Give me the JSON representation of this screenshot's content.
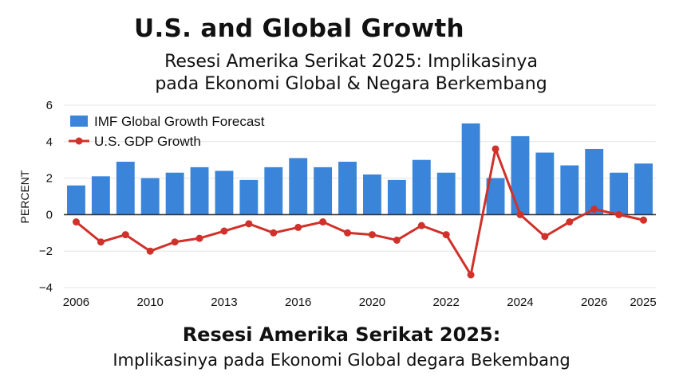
{
  "header": {
    "title": "U.S. and Global Growth",
    "subtitle_line1": "Resesi Amerika Serikat 2025: Implikasinya",
    "subtitle_line2": "pada Ekonomi Global & Negara Berkembang"
  },
  "footer": {
    "title": "Resesi Amerika Serikat 2025:",
    "subtitle": "Implikasinya pada Ekonomi Global degara Bekembang"
  },
  "chart_data": {
    "type": "bar",
    "ylabel": "PERCENT",
    "ylim": [
      -4,
      6
    ],
    "yticks": [
      "6",
      "4",
      "2",
      "0",
      "−2",
      "−4"
    ],
    "ytick_values": [
      6,
      4,
      2,
      0,
      -2,
      -4
    ],
    "xtick_labels": [
      "2006",
      "2010",
      "2013",
      "2016",
      "2020",
      "2022",
      "2024",
      "2026",
      "2025"
    ],
    "xtick_positions": [
      0,
      3,
      6,
      9,
      12,
      15,
      18,
      21,
      23.5
    ],
    "grid": true,
    "legend_position": "top-left",
    "colors": {
      "bar": "#3a85d9",
      "line": "#d0312a",
      "zero_line": "#333333",
      "grid": "#e3e3e3"
    },
    "series": [
      {
        "name": "IMF Global Growth Forecast",
        "type": "bar",
        "values": [
          1.6,
          2.1,
          2.9,
          2.0,
          2.3,
          2.6,
          2.4,
          1.9,
          2.6,
          3.1,
          2.6,
          2.9,
          2.2,
          1.9,
          3.0,
          2.3,
          5.0,
          2.0,
          4.3,
          3.4,
          2.7,
          3.6,
          2.3,
          2.8
        ]
      },
      {
        "name": "U.S. GDP Growth",
        "type": "line",
        "values": [
          -0.4,
          -1.5,
          -1.1,
          -2.0,
          -1.5,
          -1.3,
          -0.9,
          -0.5,
          -1.0,
          -0.7,
          -0.4,
          -1.0,
          -1.1,
          -1.4,
          -0.6,
          -1.1,
          -3.3,
          3.6,
          0.0,
          -1.2,
          -0.4,
          0.3,
          0.0,
          -0.3
        ]
      }
    ]
  }
}
